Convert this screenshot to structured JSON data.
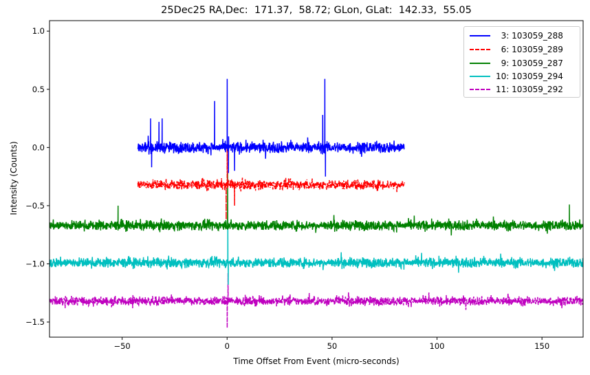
{
  "chart_data": {
    "type": "line",
    "title": "25Dec25 RA,Dec:  171.37,  58.72; GLon, GLat:  142.33,  55.05",
    "xlabel": "Time Offset From Event (micro-seconds)",
    "ylabel": "Intensity (Counts)",
    "xlim": [
      -84.6,
      169.6
    ],
    "ylim": [
      -1.63,
      1.09
    ],
    "xticks": [
      -50,
      0,
      50,
      100,
      150
    ],
    "xtick_labels": [
      "−50",
      "0",
      "50",
      "100",
      "150"
    ],
    "yticks": [
      1.0,
      0.5,
      0.0,
      -0.5,
      -1.0,
      -1.5
    ],
    "ytick_labels": [
      "1.0",
      "0.5",
      "0.0",
      "−0.5",
      "−1.0",
      "−1.5"
    ],
    "grid": false,
    "legend_position": "upper right",
    "series": [
      {
        "name": "3: 103059_288",
        "label": "  3: 103059_288",
        "color": "#0000ff",
        "style": "solid",
        "x_range": [
          -42.5,
          84.5
        ],
        "baseline": 0.0,
        "noise": 0.045,
        "spikes": [
          {
            "x": -36.5,
            "y": 0.25
          },
          {
            "x": -32.5,
            "y": 0.22
          },
          {
            "x": -31.0,
            "y": 0.25
          },
          {
            "x": -6.0,
            "y": 0.4
          },
          {
            "x": 0.0,
            "y": 0.59
          },
          {
            "x": 46.5,
            "y": 0.59
          },
          {
            "x": 45.5,
            "y": 0.28
          },
          {
            "x": 0.6,
            "y": -0.22
          },
          {
            "x": 46.8,
            "y": -0.25
          },
          {
            "x": 3.5,
            "y": -0.2
          },
          {
            "x": -36.0,
            "y": -0.17
          }
        ]
      },
      {
        "name": "6: 103059_289",
        "label": "  6: 103059_289",
        "color": "#ff0000",
        "style": "dashdot",
        "x_range": [
          -42.5,
          84.5
        ],
        "baseline": -0.32,
        "noise": 0.04,
        "spikes": [
          {
            "x": 0.0,
            "y": 0.02
          },
          {
            "x": -0.5,
            "y": -0.62
          },
          {
            "x": 3.5,
            "y": -0.5
          }
        ]
      },
      {
        "name": "9: 103059_287",
        "label": "  9: 103059_287",
        "color": "#008000",
        "style": "solid",
        "x_range": [
          -84.6,
          169.6
        ],
        "baseline": -0.67,
        "noise": 0.04,
        "spikes": [
          {
            "x": -52.0,
            "y": -0.5
          },
          {
            "x": 0.2,
            "y": -0.22
          },
          {
            "x": 163.0,
            "y": -0.49
          }
        ]
      },
      {
        "name": "10: 103059_294",
        "label": "10: 103059_294",
        "color": "#00bfbf",
        "style": "solid",
        "x_range": [
          -84.6,
          169.6
        ],
        "baseline": -0.99,
        "noise": 0.04,
        "spikes": [
          {
            "x": 0.3,
            "y": -0.62
          },
          {
            "x": 0.5,
            "y": -1.18
          }
        ]
      },
      {
        "name": "11: 103059_292",
        "label": "11: 103059_292",
        "color": "#bf00bf",
        "style": "dashed",
        "x_range": [
          -84.6,
          169.6
        ],
        "baseline": -1.32,
        "noise": 0.035,
        "spikes": [
          {
            "x": 0.0,
            "y": -1.55
          },
          {
            "x": 0.4,
            "y": -1.08
          }
        ]
      }
    ]
  }
}
